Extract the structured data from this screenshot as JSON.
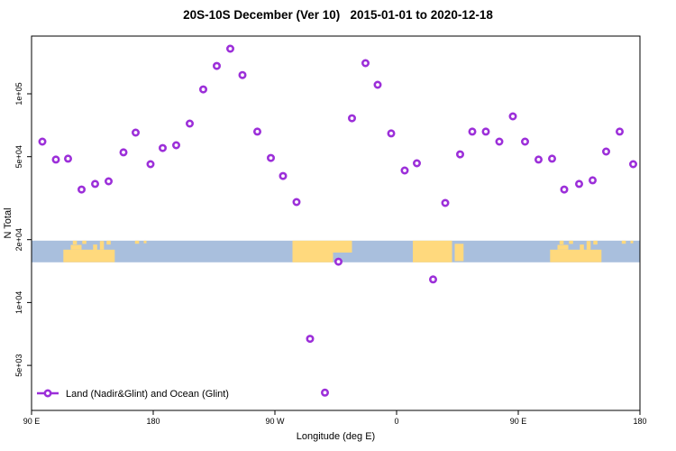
{
  "chart_data": {
    "type": "scatter",
    "title": "20S-10S December (Ver 10)   2015-01-01 to 2020-12-18",
    "xlabel": "Longitude (deg E)",
    "ylabel": "N Total",
    "x_axis": {
      "label": "Longitude (deg E)",
      "range": [
        90,
        540
      ],
      "ticks": [
        {
          "value": 90,
          "label": "90 E"
        },
        {
          "value": 180,
          "label": "180"
        },
        {
          "value": 270,
          "label": "90 W"
        },
        {
          "value": 360,
          "label": "0"
        },
        {
          "value": 450,
          "label": "90 E"
        },
        {
          "value": 540,
          "label": "180"
        }
      ]
    },
    "y_axis": {
      "label": "N Total",
      "scale": "log",
      "range": [
        3000,
        190000
      ],
      "ticks": [
        {
          "value": 100000,
          "label": "1e+05"
        },
        {
          "value": 50000,
          "label": "5e+04"
        },
        {
          "value": 20000,
          "label": "2e+04"
        },
        {
          "value": 10000,
          "label": "1e+04"
        },
        {
          "value": 5000,
          "label": "5e+03"
        }
      ]
    },
    "series": [
      {
        "name": "Land (Nadir&Glint) and Ocean (Glint)",
        "marker": "open-circle",
        "color": "#9c2fd9",
        "points": [
          {
            "lon": 98,
            "n": 59000
          },
          {
            "lon": 108,
            "n": 48400
          },
          {
            "lon": 117,
            "n": 48900
          },
          {
            "lon": 127,
            "n": 34800
          },
          {
            "lon": 137,
            "n": 37000
          },
          {
            "lon": 147,
            "n": 38100
          },
          {
            "lon": 158,
            "n": 52400
          },
          {
            "lon": 167,
            "n": 65200
          },
          {
            "lon": 178,
            "n": 46000
          },
          {
            "lon": 187,
            "n": 55000
          },
          {
            "lon": 197,
            "n": 56700
          },
          {
            "lon": 207,
            "n": 72000
          },
          {
            "lon": 217,
            "n": 105000
          },
          {
            "lon": 227,
            "n": 136000
          },
          {
            "lon": 237,
            "n": 164500
          },
          {
            "lon": 246,
            "n": 123000
          },
          {
            "lon": 257,
            "n": 65900
          },
          {
            "lon": 267,
            "n": 49300
          },
          {
            "lon": 276,
            "n": 40400
          },
          {
            "lon": 286,
            "n": 30300
          },
          {
            "lon": 296,
            "n": 6700
          },
          {
            "lon": 307,
            "n": 3700
          },
          {
            "lon": 317,
            "n": 15700
          },
          {
            "lon": 327,
            "n": 76400
          },
          {
            "lon": 337,
            "n": 140300
          },
          {
            "lon": 346,
            "n": 110500
          },
          {
            "lon": 356,
            "n": 64600
          },
          {
            "lon": 366,
            "n": 42900
          },
          {
            "lon": 375,
            "n": 46500
          },
          {
            "lon": 387,
            "n": 12900
          },
          {
            "lon": 396,
            "n": 30000
          },
          {
            "lon": 407,
            "n": 51300
          },
          {
            "lon": 416,
            "n": 65900
          },
          {
            "lon": 426,
            "n": 65900
          },
          {
            "lon": 436,
            "n": 59000
          },
          {
            "lon": 446,
            "n": 78000
          },
          {
            "lon": 455,
            "n": 59000
          },
          {
            "lon": 465,
            "n": 48400
          },
          {
            "lon": 475,
            "n": 48900
          },
          {
            "lon": 484,
            "n": 34800
          },
          {
            "lon": 495,
            "n": 37000
          },
          {
            "lon": 505,
            "n": 38500
          },
          {
            "lon": 515,
            "n": 52900
          },
          {
            "lon": 525,
            "n": 65900
          },
          {
            "lon": 535,
            "n": 46000
          }
        ]
      }
    ],
    "map_band": {
      "description": "world-map strip (20S-10S latitude band), ocean blue with land patches",
      "ocean_color": "#a9bfdd",
      "land_color": "#ffd97d",
      "n_top": 19800,
      "n_bottom": 15600,
      "land_segments": [
        {
          "lon0": 113.5,
          "lon1": 151.5,
          "f0": 0.42,
          "f1": 1.0
        },
        {
          "lon0": 119,
          "lon1": 127,
          "f0": 0.2,
          "f1": 0.42
        },
        {
          "lon0": 140.5,
          "lon1": 143.5,
          "f0": 0.02,
          "f1": 0.42
        },
        {
          "lon0": 135.5,
          "lon1": 138.5,
          "f0": 0.18,
          "f1": 0.42
        },
        {
          "lon0": 120.5,
          "lon1": 123.5,
          "f0": 0.0,
          "f1": 0.18
        },
        {
          "lon0": 127.5,
          "lon1": 130.5,
          "f0": 0.0,
          "f1": 0.15
        },
        {
          "lon0": 145.5,
          "lon1": 148.5,
          "f0": 0.0,
          "f1": 0.18
        },
        {
          "lon0": 166.5,
          "lon1": 169.5,
          "f0": 0.0,
          "f1": 0.14
        },
        {
          "lon0": 173,
          "lon1": 175,
          "f0": 0.0,
          "f1": 0.12
        },
        {
          "lon0": 283,
          "lon1": 313,
          "f0": 0.0,
          "f1": 1.0
        },
        {
          "lon0": 313,
          "lon1": 327,
          "f0": 0.0,
          "f1": 0.55
        },
        {
          "lon0": 372,
          "lon1": 401,
          "f0": 0.0,
          "f1": 1.0
        },
        {
          "lon0": 403,
          "lon1": 409.5,
          "f0": 0.15,
          "f1": 0.95
        },
        {
          "lon0": 473.5,
          "lon1": 511.5,
          "f0": 0.42,
          "f1": 1.0
        },
        {
          "lon0": 479,
          "lon1": 487,
          "f0": 0.2,
          "f1": 0.42
        },
        {
          "lon0": 500.5,
          "lon1": 503.5,
          "f0": 0.02,
          "f1": 0.42
        },
        {
          "lon0": 495.5,
          "lon1": 498.5,
          "f0": 0.18,
          "f1": 0.42
        },
        {
          "lon0": 480.5,
          "lon1": 483.5,
          "f0": 0.0,
          "f1": 0.18
        },
        {
          "lon0": 487.5,
          "lon1": 490.5,
          "f0": 0.0,
          "f1": 0.15
        },
        {
          "lon0": 505.5,
          "lon1": 508.5,
          "f0": 0.0,
          "f1": 0.18
        },
        {
          "lon0": 526.5,
          "lon1": 529.5,
          "f0": 0.0,
          "f1": 0.14
        },
        {
          "lon0": 533,
          "lon1": 535,
          "f0": 0.0,
          "f1": 0.12
        }
      ]
    },
    "legend": {
      "label": "Land (Nadir&Glint) and Ocean (Glint)",
      "position": "bottom-left"
    },
    "grid": false
  }
}
